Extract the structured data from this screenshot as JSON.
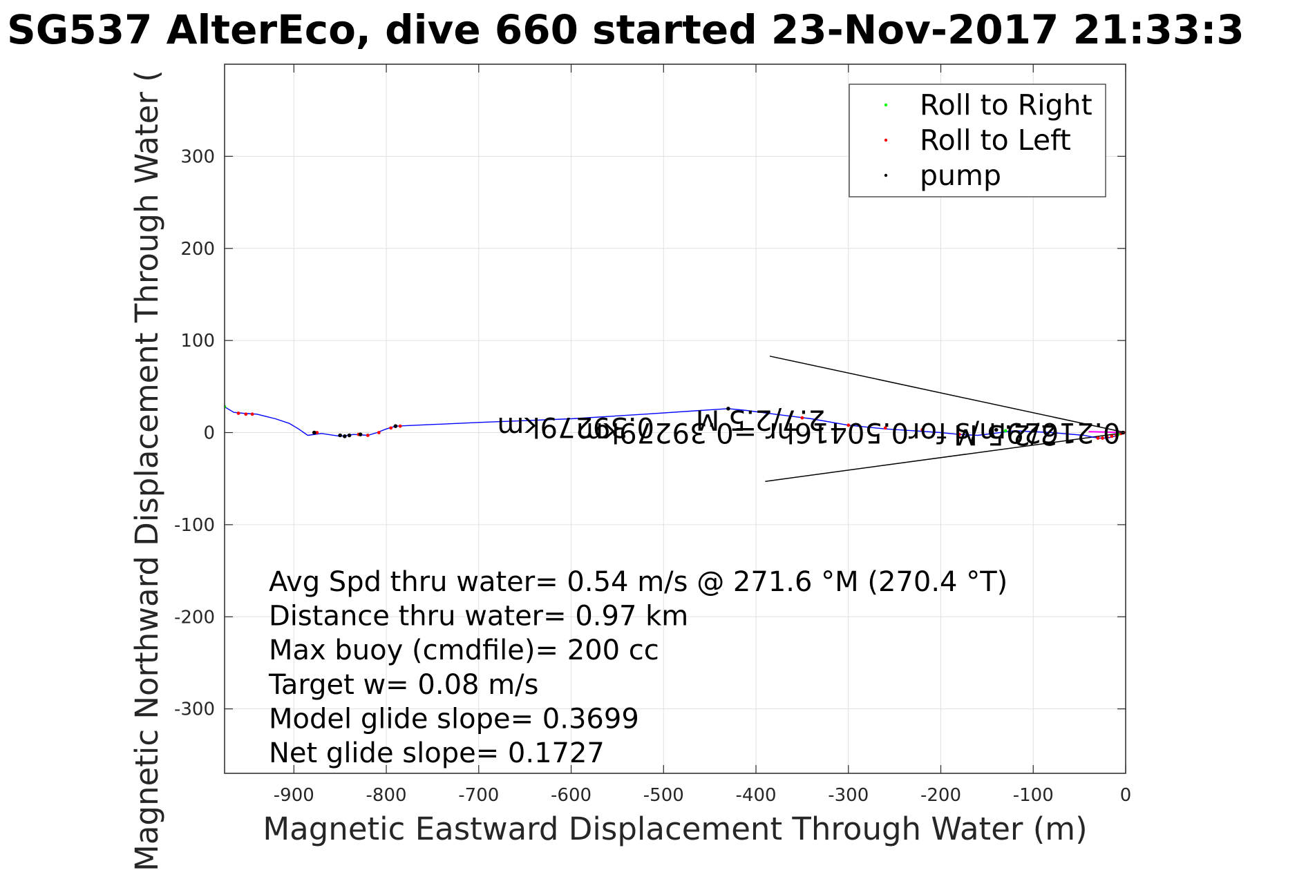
{
  "chart_data": {
    "type": "scatter",
    "title": "SG537 AlterEco, dive 660 started 23-Nov-2017 21:33:3",
    "xlabel": "Magnetic Eastward Displacement Through Water (m)",
    "ylabel": "Magnetic Northward Displacement Through Water (",
    "xlim": [
      -975,
      0
    ],
    "ylim": [
      -370,
      400
    ],
    "x_ticks": [
      -900,
      -800,
      -700,
      -600,
      -500,
      -400,
      -300,
      -200,
      -100,
      0
    ],
    "y_ticks": [
      -300,
      -200,
      -100,
      0,
      100,
      200,
      300
    ],
    "grid": true,
    "legend_position": "top-right",
    "track": {
      "name": "",
      "color": "#0000ff",
      "x": [
        0,
        -5,
        -12,
        -20,
        -28,
        -35,
        -45,
        -80,
        -120,
        -160,
        -180,
        -200,
        -230,
        -260,
        -300,
        -340,
        -380,
        -410,
        -430,
        -520,
        -600,
        -650,
        -700,
        -790,
        -800,
        -810,
        -820,
        -835,
        -850,
        -870,
        -885,
        -895,
        -905,
        -920,
        -940,
        -955,
        -965,
        -975
      ],
      "y": [
        0,
        -1,
        -4,
        -6,
        -6,
        -5,
        -3,
        0,
        2,
        -3,
        -2,
        0,
        2,
        4,
        8,
        15,
        20,
        24,
        26,
        20,
        15,
        13,
        11,
        7,
        4,
        0,
        -3,
        -2,
        -4,
        -1,
        -3,
        4,
        10,
        15,
        20,
        21,
        22,
        28
      ]
    },
    "series": [
      {
        "name": "Roll to Right",
        "color": "#00ff00",
        "x": [
          -975,
          -8,
          -130
        ],
        "y": [
          28,
          -2,
          2
        ]
      },
      {
        "name": "Roll to Left",
        "color": "#ff0000",
        "x": [
          -960,
          -952,
          -945,
          -875,
          -830,
          -820,
          -808,
          -795,
          -785,
          -430,
          -350,
          -300,
          -260,
          -220,
          -180,
          -30,
          -25,
          -20,
          -15,
          -10,
          -5,
          -2
        ],
        "y": [
          21,
          20,
          20,
          0,
          -2,
          -3,
          0,
          5,
          7,
          26,
          16,
          8,
          5,
          3,
          -2,
          -6,
          -6,
          -5,
          -4,
          -3,
          -1,
          0
        ]
      },
      {
        "name": "pump",
        "color": "#000000",
        "x": [
          -878,
          -850,
          -845,
          -840,
          -828,
          -790,
          -430,
          -140,
          -100,
          -3
        ],
        "y": [
          0,
          -3,
          -4,
          -3,
          -2,
          7,
          26,
          3,
          2,
          0
        ]
      }
    ],
    "wedge_lines": [
      {
        "x": [
          0,
          -385
        ],
        "y": [
          0,
          83
        ]
      },
      {
        "x": [
          0,
          -390
        ],
        "y": [
          0,
          -53
        ]
      }
    ],
    "current_arrow": {
      "x": [
        0,
        -40
      ],
      "y": [
        0,
        1
      ]
    },
    "rotated_annotations": [
      {
        "text": "0.39279km",
        "x": -595,
        "y": 16,
        "rotation": 180
      },
      {
        "text": "2.7/2.5 M",
        "x": -395,
        "y": 24,
        "rotation": 180
      },
      {
        "text": "0.21629m/s for0.50416hr =0.39279km",
        "x": -300,
        "y": 10,
        "rotation": 180
      },
      {
        "text": "2/2.5 M",
        "x": -130,
        "y": 8,
        "rotation": 180
      }
    ],
    "stats": [
      "Avg Spd thru water=  0.54 m/s @ 271.6 °M (270.4 °T)",
      "Distance thru water=  0.97 km",
      "Max buoy (cmdfile)= 200 cc",
      "Target w= 0.08 m/s",
      "Model glide slope= 0.3699",
      "Net glide slope= 0.1727"
    ]
  }
}
